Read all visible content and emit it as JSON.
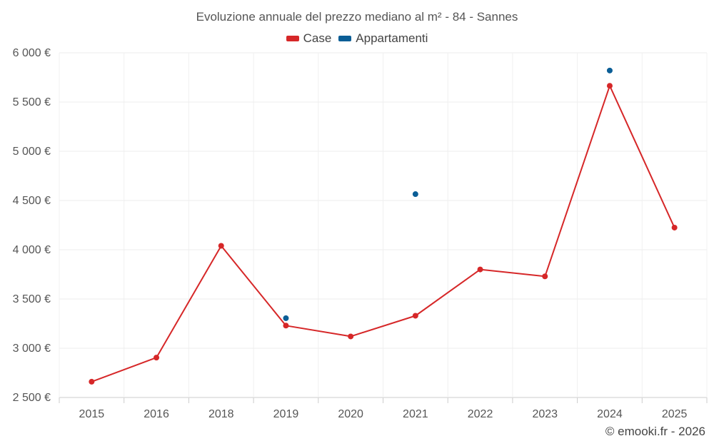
{
  "chart_data": {
    "type": "line",
    "title": "Evoluzione annuale del prezzo mediano al m² - 84 - Sannes",
    "categories": [
      "2015",
      "2016",
      "2018",
      "2019",
      "2020",
      "2021",
      "2022",
      "2023",
      "2024",
      "2025"
    ],
    "series": [
      {
        "name": "Case",
        "color": "#d62728",
        "values": [
          2660,
          2905,
          4040,
          3230,
          3120,
          3330,
          3800,
          3730,
          5665,
          4225
        ]
      },
      {
        "name": "Appartamenti",
        "color": "#0b5e96",
        "values": [
          null,
          null,
          null,
          3305,
          null,
          4565,
          null,
          null,
          5820,
          null
        ]
      }
    ],
    "ylim": [
      2500,
      6000
    ],
    "yticks": [
      2500,
      3000,
      3500,
      4000,
      4500,
      5000,
      5500,
      6000
    ],
    "ytick_labels": [
      "2 500 €",
      "3 000 €",
      "3 500 €",
      "4 000 €",
      "4 500 €",
      "5 000 €",
      "5 500 €",
      "6 000 €"
    ],
    "grid": true,
    "legend_position": "top-center",
    "credit": "© emooki.fr - 2026"
  }
}
